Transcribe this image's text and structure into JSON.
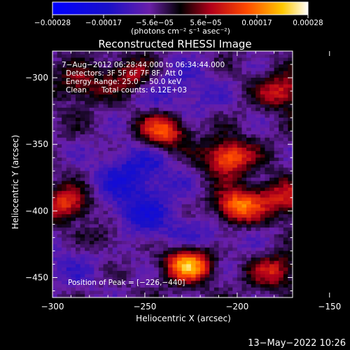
{
  "chart_data": {
    "type": "heatmap",
    "title": "Reconstructed RHESSI Image",
    "xlabel": "Heliocentric X (arcsec)",
    "ylabel": "Heliocentric Y (arcsec)",
    "xlim": [
      -300,
      -170
    ],
    "ylim": [
      -465,
      -280
    ],
    "x_ticks": [
      {
        "value": -300,
        "label": "−300"
      },
      {
        "value": -250,
        "label": "−250"
      },
      {
        "value": -200,
        "label": "−200"
      },
      {
        "value": -150,
        "label": "−150"
      }
    ],
    "y_ticks": [
      {
        "value": -300,
        "label": "−300"
      },
      {
        "value": -350,
        "label": "−350"
      },
      {
        "value": -400,
        "label": "−400"
      },
      {
        "value": -450,
        "label": "−450"
      }
    ],
    "colorbar": {
      "range": [
        -0.00028,
        0.00028
      ],
      "tick_labels": [
        "−0.00028",
        "−0.00017",
        "−5.6e−05",
        "5.6e−05",
        "0.00017",
        "0.00028"
      ],
      "unit_label": "(photons cm⁻² s⁻¹ asec⁻²)"
    },
    "annotations": {
      "time_range": "7−Aug−2012 06:28:44.000 to 06:34:44.000",
      "detectors": "Detectors: 3F 5F 6F 7F 8F, Att 0",
      "energy": "Energy Range: 25.0 − 50.0 keV",
      "clean_label": "Clean",
      "counts": "Total counts: 6.12E+03",
      "peak": "Position of Peak = [−226,−440]"
    },
    "sources": [
      {
        "x": -226,
        "y": -440,
        "intensity": 0.00028
      },
      {
        "x": -134,
        "y": -425,
        "intensity": 0.00026
      },
      {
        "x": -200,
        "y": -397,
        "intensity": 0.00024
      },
      {
        "x": -205,
        "y": -360,
        "intensity": 0.00022
      },
      {
        "x": -240,
        "y": -340,
        "intensity": 0.00021
      },
      {
        "x": -292,
        "y": -395,
        "intensity": 0.00018
      },
      {
        "x": -160,
        "y": -395,
        "intensity": 0.00016
      },
      {
        "x": -175,
        "y": -310,
        "intensity": 0.00015
      },
      {
        "x": -150,
        "y": -340,
        "intensity": 0.00014
      },
      {
        "x": -180,
        "y": -445,
        "intensity": 0.00013
      },
      {
        "x": -258,
        "y": -298,
        "intensity": 0.00012
      },
      {
        "x": -285,
        "y": -305,
        "intensity": 0.00011
      },
      {
        "x": -178,
        "y": -388,
        "intensity": 0.00012
      },
      {
        "x": -270,
        "y": -420,
        "intensity": 9e-05
      }
    ],
    "negative_regions": [
      {
        "x": -255,
        "y": -370,
        "intensity": -0.0001
      },
      {
        "x": -255,
        "y": -405,
        "intensity": -9e-05
      },
      {
        "x": -230,
        "y": -310,
        "intensity": -7e-05
      },
      {
        "x": -215,
        "y": -420,
        "intensity": -6e-05
      },
      {
        "x": -145,
        "y": -380,
        "intensity": -6e-05
      },
      {
        "x": -290,
        "y": -440,
        "intensity": -5e-05
      }
    ]
  },
  "footer": {
    "timestamp": "13−May−2022 10:26"
  }
}
